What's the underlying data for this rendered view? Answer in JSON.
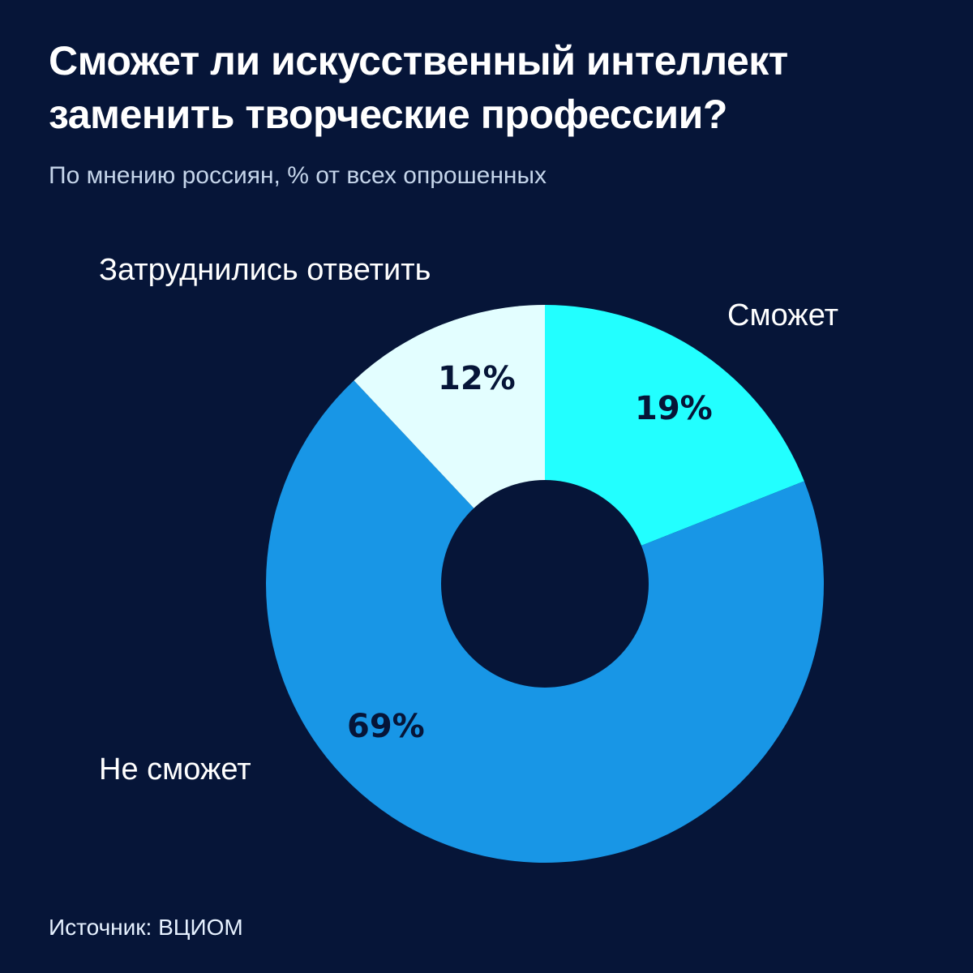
{
  "header": {
    "title": "Сможет ли искусственный интеллект заменить творческие профессии?",
    "subtitle": "По мнению россиян, % от всех опрошенных"
  },
  "labels": {
    "can": "Сможет",
    "cannot": "Не сможет",
    "unsure": "Затруднились ответить"
  },
  "percents": {
    "can": "19%",
    "cannot": "69%",
    "unsure": "12%"
  },
  "footer": {
    "source": "Источник: ВЦИОМ"
  },
  "colors": {
    "background": "#061538",
    "can": "#22FFFF",
    "cannot": "#1896E6",
    "unsure": "#E3FEFF"
  },
  "chart_data": {
    "type": "pie",
    "variant": "donut",
    "title": "Сможет ли искусственный интеллект заменить творческие профессии?",
    "subtitle": "По мнению россиян, % от всех опрошенных",
    "categories": [
      "Сможет",
      "Не сможет",
      "Затруднились ответить"
    ],
    "values": [
      19,
      69,
      12
    ],
    "unit": "%",
    "colors": [
      "#22FFFF",
      "#1896E6",
      "#E3FEFF"
    ],
    "start_angle": "12 o'clock, clockwise",
    "source": "Источник: ВЦИОМ"
  }
}
